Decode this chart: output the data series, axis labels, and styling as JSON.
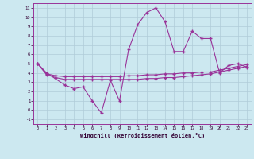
{
  "background_color": "#cce8f0",
  "grid_color": "#b0ccd8",
  "line_color": "#993399",
  "xlim": [
    -0.5,
    23.5
  ],
  "ylim": [
    -1.5,
    11.5
  ],
  "xlabel": "Windchill (Refroidissement éolien,°C)",
  "yticks": [
    -1,
    0,
    1,
    2,
    3,
    4,
    5,
    6,
    7,
    8,
    9,
    10,
    11
  ],
  "xticks": [
    0,
    1,
    2,
    3,
    4,
    5,
    6,
    7,
    8,
    9,
    10,
    11,
    12,
    13,
    14,
    15,
    16,
    17,
    18,
    19,
    20,
    21,
    22,
    23
  ],
  "line1_x": [
    0,
    1,
    3,
    4,
    5,
    6,
    7,
    8,
    9,
    10,
    11,
    12,
    13,
    14,
    15,
    16,
    17,
    18,
    19,
    20,
    21,
    22,
    23
  ],
  "line1_y": [
    5.0,
    4.0,
    2.7,
    2.3,
    2.5,
    1.0,
    -0.3,
    3.2,
    1.0,
    6.5,
    9.2,
    10.5,
    11.0,
    9.5,
    6.3,
    6.3,
    8.5,
    7.7,
    7.7,
    4.0,
    4.8,
    5.0,
    4.6
  ],
  "line2_x": [
    0,
    1,
    2,
    3,
    4,
    5,
    6,
    7,
    8,
    9,
    10,
    11,
    12,
    13,
    14,
    15,
    16,
    17,
    18,
    19,
    20,
    21,
    22,
    23
  ],
  "line2_y": [
    5.0,
    3.9,
    3.7,
    3.6,
    3.6,
    3.6,
    3.6,
    3.6,
    3.6,
    3.6,
    3.7,
    3.7,
    3.8,
    3.8,
    3.9,
    3.9,
    4.0,
    4.0,
    4.1,
    4.1,
    4.3,
    4.5,
    4.7,
    4.9
  ],
  "line3_x": [
    0,
    1,
    2,
    3,
    4,
    5,
    6,
    7,
    8,
    9,
    10,
    11,
    12,
    13,
    14,
    15,
    16,
    17,
    18,
    19,
    20,
    21,
    22,
    23
  ],
  "line3_y": [
    5.0,
    3.8,
    3.5,
    3.3,
    3.3,
    3.3,
    3.3,
    3.3,
    3.3,
    3.3,
    3.3,
    3.3,
    3.4,
    3.4,
    3.5,
    3.5,
    3.6,
    3.7,
    3.8,
    3.9,
    4.1,
    4.3,
    4.5,
    4.7
  ]
}
